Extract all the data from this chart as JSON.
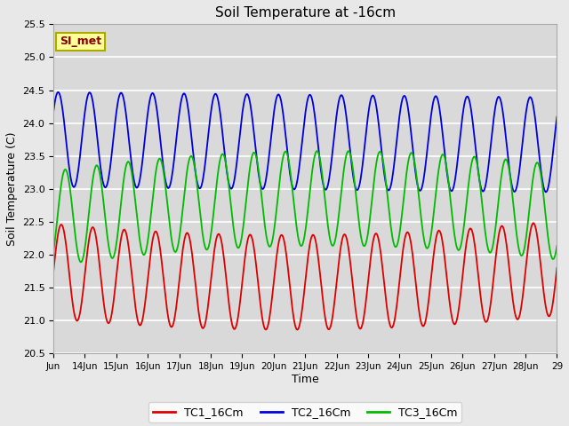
{
  "title": "Soil Temperature at -16cm",
  "xlabel": "Time",
  "ylabel": "Soil Temperature (C)",
  "ylim": [
    20.5,
    25.5
  ],
  "background_color": "#e8e8e8",
  "plot_bg_color": "#d9d9d9",
  "grid_color": "#ffffff",
  "legend_label": "SI_met",
  "x_tick_labels": [
    "Jun",
    "14Jun",
    "15Jun",
    "16Jun",
    "17Jun",
    "18Jun",
    "19Jun",
    "20Jun",
    "21Jun",
    "22Jun",
    "23Jun",
    "24Jun",
    "25Jun",
    "26Jun",
    "27Jun",
    "28Jun",
    "29"
  ],
  "series": {
    "TC1_16Cm": {
      "color": "#dd0000",
      "label": "TC1_16Cm"
    },
    "TC2_16Cm": {
      "color": "#0000dd",
      "label": "TC2_16Cm"
    },
    "TC3_16Cm": {
      "color": "#00bb00",
      "label": "TC3_16Cm"
    }
  },
  "tc1_base_mean": 21.75,
  "tc1_trend": [
    -0.045,
    0.003
  ],
  "tc1_amp": 0.72,
  "tc2_base_mean": 23.75,
  "tc2_trend": [
    -0.005,
    0.0
  ],
  "tc2_amp": 0.72,
  "tc3_base_mean": 22.55,
  "tc3_trend": [
    0.07,
    -0.004
  ],
  "tc3_amp": 0.72,
  "period": 1.0
}
